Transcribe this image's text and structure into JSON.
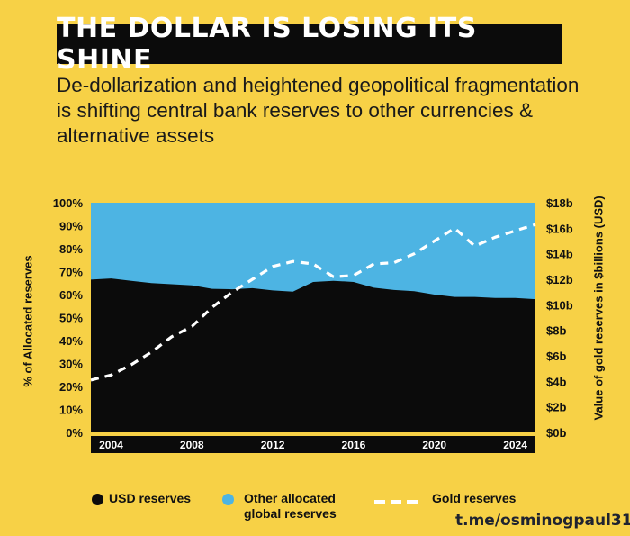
{
  "title": "THE DOLLAR IS LOSING ITS SHINE",
  "subtitle": "De-dollarization and heightened geopolitical fragmentation is shifting central bank reserves to other currencies & alternative assets",
  "watermark": "t.me/osminogpaul31",
  "legend": {
    "usd": "USD reserves",
    "other_line1": "Other allocated",
    "other_line2": "global reserves",
    "gold": "Gold reserves"
  },
  "colors": {
    "background": "#f7d146",
    "usd": "#0b0b0b",
    "other": "#4db4e3",
    "gold": "#ffffff",
    "title_box": "#0b0b0b"
  },
  "chart_data": {
    "type": "area",
    "ylabel": "% of Allocated reserves",
    "y2label": "Value of gold reserves in $billions (USD)",
    "ylim": [
      0,
      100
    ],
    "y2lim": [
      0,
      18
    ],
    "xlim": [
      2003,
      2025
    ],
    "x_ticks": [
      "2004",
      "2008",
      "2012",
      "2016",
      "2020",
      "2024"
    ],
    "y_ticks": [
      "0%",
      "10%",
      "20%",
      "30%",
      "40%",
      "50%",
      "60%",
      "70%",
      "80%",
      "90%",
      "100%"
    ],
    "y2_ticks": [
      "$0b",
      "$2b",
      "$4b",
      "$6b",
      "$8b",
      "$10b",
      "$12b",
      "$14b",
      "$16b",
      "$18b"
    ],
    "series": [
      {
        "name": "USD reserves",
        "kind": "area",
        "x": [
          2003,
          2004,
          2005,
          2006,
          2007,
          2008,
          2009,
          2010,
          2011,
          2012,
          2013,
          2014,
          2015,
          2016,
          2017,
          2018,
          2019,
          2020,
          2021,
          2022,
          2023,
          2024,
          2025
        ],
        "values": [
          66.5,
          67,
          66,
          65,
          64.5,
          64,
          62.5,
          62.3,
          62.8,
          61.8,
          61.3,
          65.5,
          66,
          65.5,
          63,
          62,
          61.5,
          60,
          59,
          59,
          58.5,
          58.5,
          58
        ]
      },
      {
        "name": "Other allocated global reserves",
        "kind": "area",
        "x": [
          2003,
          2025
        ],
        "values": [
          33.5,
          42
        ]
      },
      {
        "name": "Gold reserves",
        "kind": "line",
        "axis": "right",
        "x": [
          2003,
          2004,
          2005,
          2006,
          2007,
          2008,
          2009,
          2010,
          2011,
          2012,
          2013,
          2014,
          2015,
          2016,
          2017,
          2018,
          2019,
          2020,
          2021,
          2022,
          2023,
          2024,
          2025
        ],
        "values": [
          4.1,
          4.5,
          5.3,
          6.3,
          7.5,
          8.3,
          9.8,
          11,
          12,
          13,
          13.4,
          13.2,
          12.2,
          12.3,
          13.2,
          13.3,
          14,
          15,
          16,
          14.6,
          15.3,
          15.8,
          16.3
        ]
      }
    ]
  }
}
